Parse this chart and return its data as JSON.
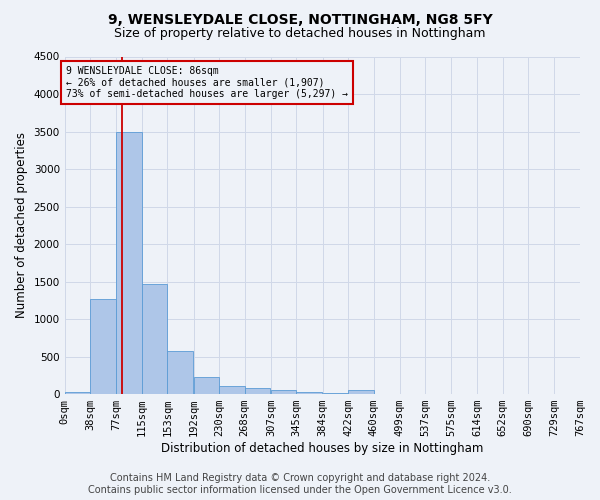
{
  "title": "9, WENSLEYDALE CLOSE, NOTTINGHAM, NG8 5FY",
  "subtitle": "Size of property relative to detached houses in Nottingham",
  "xlabel": "Distribution of detached houses by size in Nottingham",
  "ylabel": "Number of detached properties",
  "footer_line1": "Contains HM Land Registry data © Crown copyright and database right 2024.",
  "footer_line2": "Contains public sector information licensed under the Open Government Licence v3.0.",
  "bin_labels": [
    "0sqm",
    "38sqm",
    "77sqm",
    "115sqm",
    "153sqm",
    "192sqm",
    "230sqm",
    "268sqm",
    "307sqm",
    "345sqm",
    "384sqm",
    "422sqm",
    "460sqm",
    "499sqm",
    "537sqm",
    "575sqm",
    "614sqm",
    "652sqm",
    "690sqm",
    "729sqm",
    "767sqm"
  ],
  "bin_edges": [
    0,
    38,
    77,
    115,
    153,
    192,
    230,
    268,
    307,
    345,
    384,
    422,
    460,
    499,
    537,
    575,
    614,
    652,
    690,
    729,
    767
  ],
  "bar_heights": [
    30,
    1270,
    3500,
    1470,
    580,
    230,
    105,
    80,
    55,
    30,
    10,
    50,
    0,
    0,
    0,
    0,
    0,
    0,
    0,
    0
  ],
  "bar_color": "#aec6e8",
  "bar_edge_color": "#5b9bd5",
  "property_value": 86,
  "property_line_color": "#cc0000",
  "annotation_text_line1": "9 WENSLEYDALE CLOSE: 86sqm",
  "annotation_text_line2": "← 26% of detached houses are smaller (1,907)",
  "annotation_text_line3": "73% of semi-detached houses are larger (5,297) →",
  "annotation_box_color": "#cc0000",
  "ylim": [
    0,
    4500
  ],
  "yticks": [
    0,
    500,
    1000,
    1500,
    2000,
    2500,
    3000,
    3500,
    4000,
    4500
  ],
  "grid_color": "#d0d8e8",
  "bg_color": "#eef2f8",
  "title_fontsize": 10,
  "subtitle_fontsize": 9,
  "axis_label_fontsize": 8.5,
  "tick_fontsize": 7.5,
  "footer_fontsize": 7
}
